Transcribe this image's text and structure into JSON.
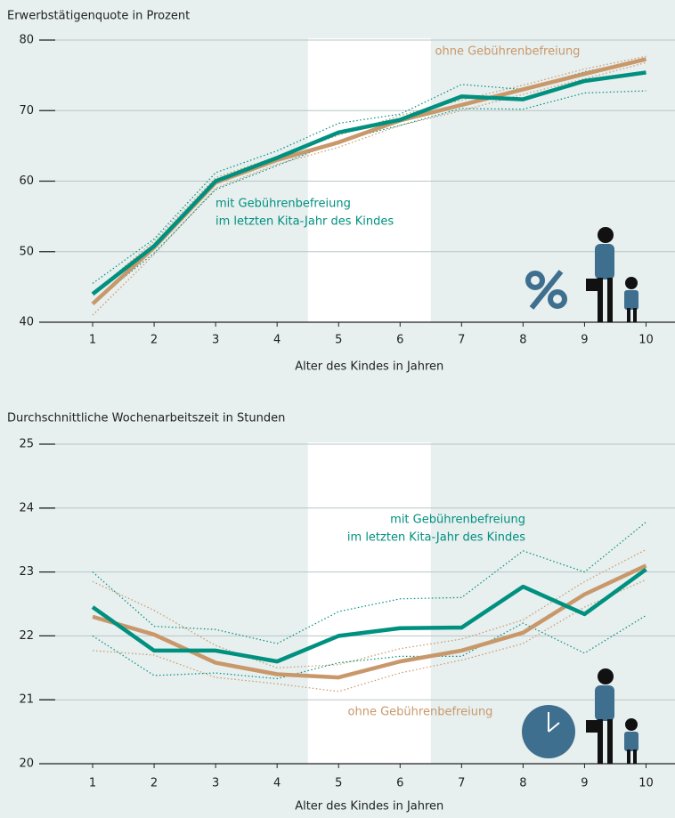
{
  "chart_data": [
    {
      "type": "line",
      "title": "Erwerbstätigenquote in Prozent",
      "xlabel": "Alter des Kindes in Jahren",
      "x": [
        1,
        2,
        3,
        4,
        5,
        6,
        7,
        8,
        9,
        10
      ],
      "xlim": [
        0.5,
        10.5
      ],
      "xticks": [
        1,
        2,
        3,
        4,
        5,
        6,
        7,
        8,
        9,
        10
      ],
      "ylim": [
        40,
        80
      ],
      "yticks": [
        40,
        50,
        60,
        70,
        80
      ],
      "grid": true,
      "highlight": [
        4.5,
        6.5
      ],
      "series": [
        {
          "name": [
            "ohne Gebührenbefreiung"
          ],
          "color": "#c9986a",
          "values": [
            42.6,
            50.6,
            59.8,
            63.0,
            65.5,
            68.6,
            70.8,
            73.0,
            75.2,
            77.3
          ],
          "ci_upper": [
            44.0,
            51.5,
            60.5,
            63.5,
            66.5,
            69.3,
            71.5,
            73.6,
            75.9,
            77.7
          ],
          "ci_lower": [
            41.0,
            49.6,
            59.0,
            62.4,
            64.8,
            67.9,
            70.0,
            72.3,
            74.5,
            76.8
          ]
        },
        {
          "name": [
            "mit Gebührenbefreiung",
            "im letzten Kita-Jahr des Kindes"
          ],
          "color": "#00907f",
          "values": [
            44.0,
            50.8,
            60.0,
            63.3,
            66.9,
            68.7,
            72.0,
            71.6,
            74.2,
            75.4
          ],
          "ci_upper": [
            45.5,
            51.8,
            61.2,
            64.3,
            68.2,
            69.5,
            73.7,
            73.0,
            75.5,
            77.3
          ],
          "ci_lower": [
            42.8,
            49.8,
            58.8,
            62.2,
            65.7,
            67.9,
            70.3,
            70.2,
            72.5,
            72.8
          ]
        }
      ]
    },
    {
      "type": "line",
      "title": "Durchschnittliche Wochenarbeitszeit in Stunden",
      "xlabel": "Alter des Kindes in Jahren",
      "x": [
        1,
        2,
        3,
        4,
        5,
        6,
        7,
        8,
        9,
        10
      ],
      "xlim": [
        0.5,
        10.5
      ],
      "xticks": [
        1,
        2,
        3,
        4,
        5,
        6,
        7,
        8,
        9,
        10
      ],
      "ylim": [
        20,
        25
      ],
      "yticks": [
        20,
        21,
        22,
        23,
        24,
        25
      ],
      "grid": true,
      "highlight": [
        4.5,
        6.5
      ],
      "series": [
        {
          "name": [
            "ohne Gebührenbefreiung"
          ],
          "color": "#c9986a",
          "values": [
            22.3,
            22.02,
            21.58,
            21.4,
            21.35,
            21.6,
            21.77,
            22.05,
            22.65,
            23.1
          ],
          "ci_upper": [
            22.85,
            22.4,
            21.85,
            21.5,
            21.55,
            21.8,
            21.95,
            22.25,
            22.85,
            23.35
          ],
          "ci_lower": [
            21.77,
            21.7,
            21.35,
            21.25,
            21.13,
            21.42,
            21.62,
            21.88,
            22.45,
            22.88
          ]
        },
        {
          "name": [
            "mit Gebührenbefreiung",
            "im letzten Kita-Jahr des Kindes"
          ],
          "color": "#00907f",
          "values": [
            22.45,
            21.77,
            21.77,
            21.6,
            22.0,
            22.12,
            22.13,
            22.77,
            22.34,
            23.04
          ],
          "ci_upper": [
            23.0,
            22.15,
            22.1,
            21.88,
            22.38,
            22.58,
            22.6,
            23.33,
            23.0,
            23.78
          ],
          "ci_lower": [
            22.0,
            21.38,
            21.42,
            21.33,
            21.58,
            21.68,
            21.68,
            22.2,
            21.73,
            22.32
          ]
        }
      ]
    }
  ]
}
